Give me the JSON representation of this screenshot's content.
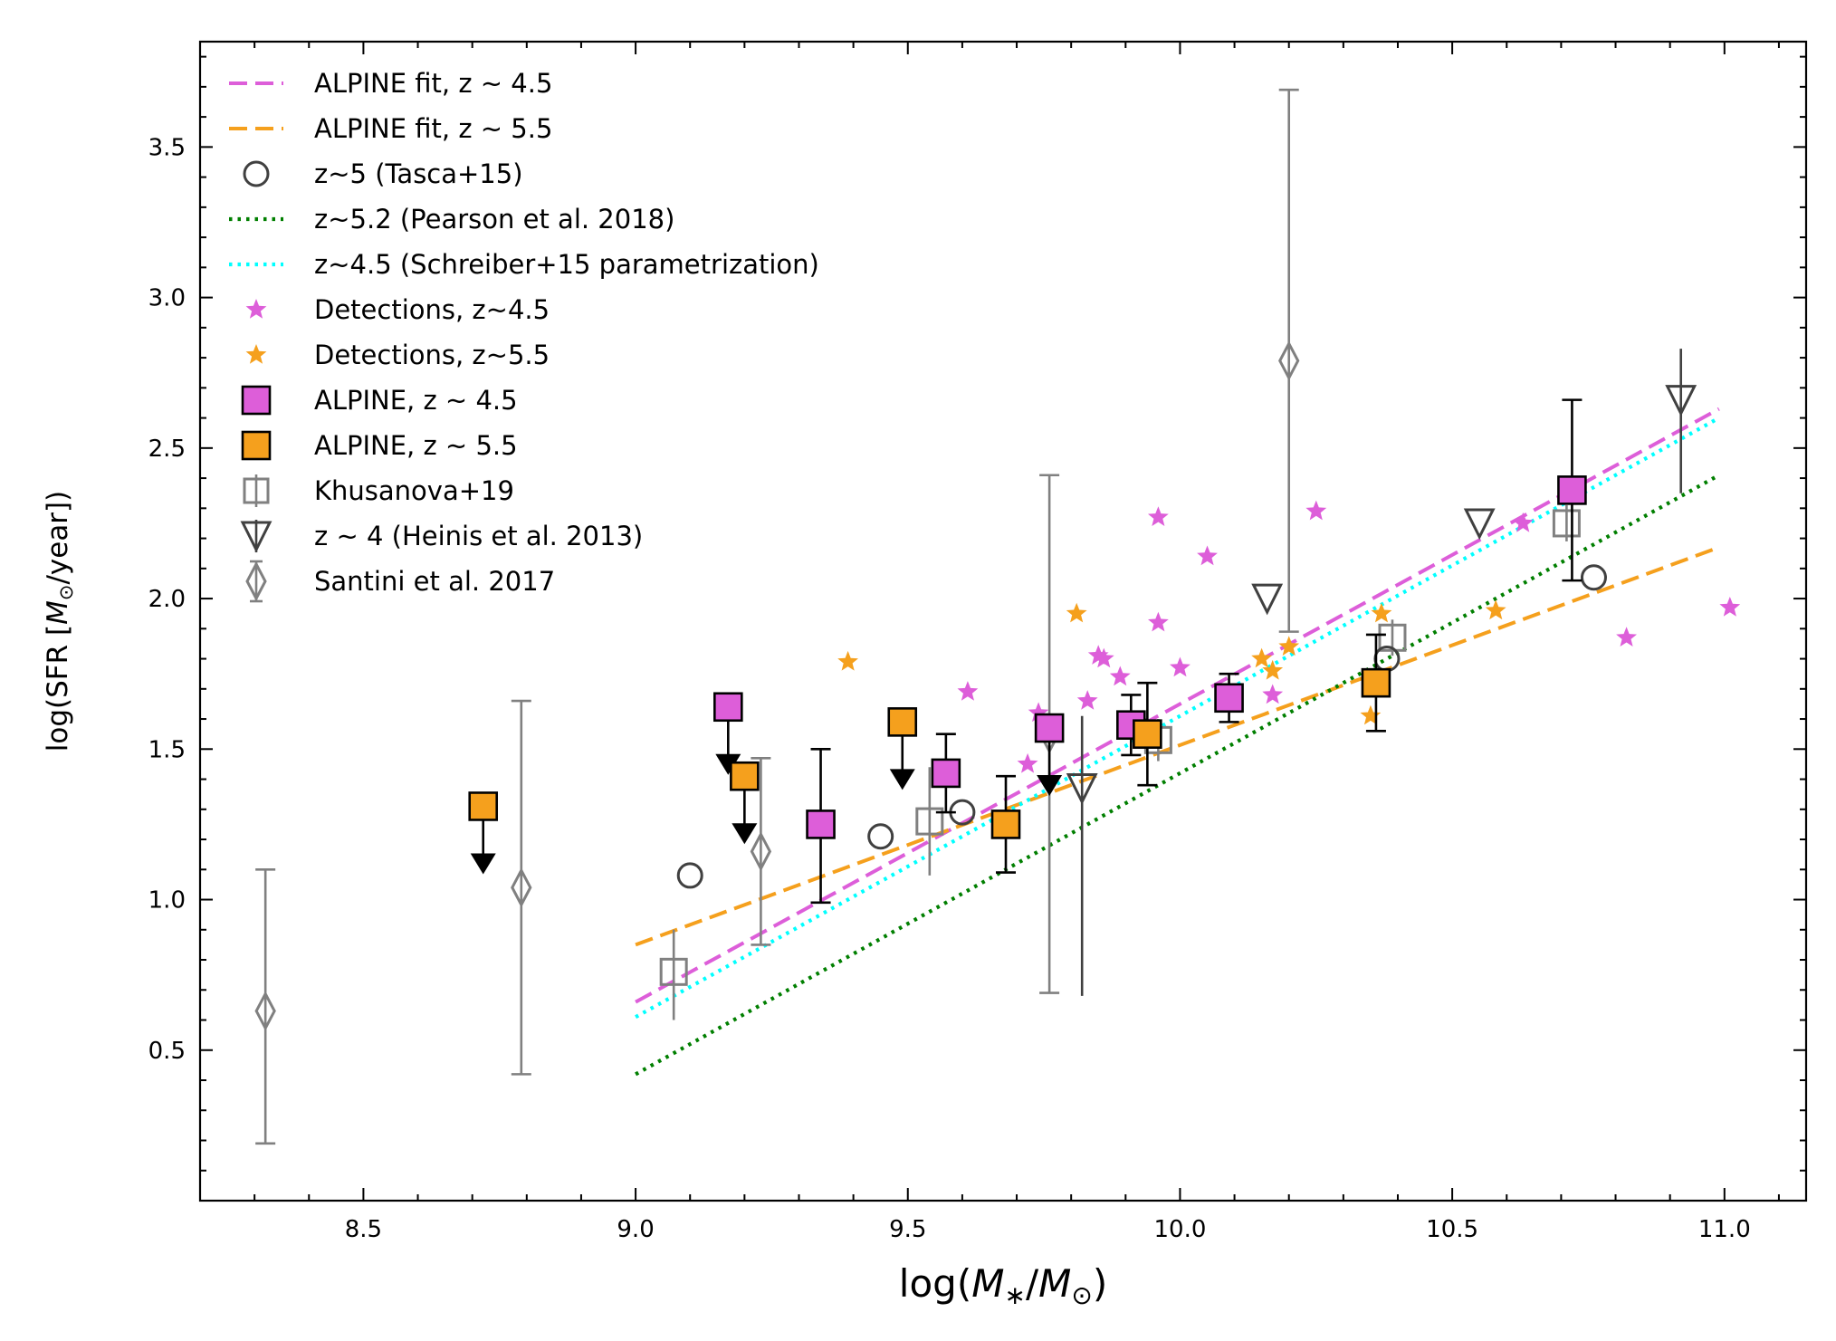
{
  "chart_data": {
    "type": "scatter",
    "title": "",
    "xlabel": "log(M*/M⊙)",
    "ylabel": "log(SFR [M⊙/year])",
    "xlabel_parts": {
      "pre": "log(",
      "m1": "M",
      "s1": "∗",
      "slash": "/",
      "m2": "M",
      "s2": "⊙",
      "post": ")"
    },
    "ylabel_parts": {
      "pre": "log(SFR [",
      "m": "M",
      "s": "⊙",
      "post": "/year])"
    },
    "xlim": [
      8.2,
      11.15
    ],
    "ylim": [
      0.0,
      3.85
    ],
    "xticks": [
      "8.5",
      "9.0",
      "9.5",
      "10.0",
      "10.5",
      "11.0"
    ],
    "yticks": [
      "0.5",
      "1.0",
      "1.5",
      "2.0",
      "2.5",
      "3.0",
      "3.5"
    ],
    "colors": {
      "magenta": "#dd5ed9",
      "orange": "#f5a01d",
      "green": "#007f00",
      "cyan": "#00ffff",
      "gray": "#808080",
      "dark": "#404040",
      "black": "#000000"
    },
    "legend": [
      {
        "label": "ALPINE fit, z ∼ 4.5",
        "marker": "dash-magenta"
      },
      {
        "label": "ALPINE fit, z ∼ 5.5",
        "marker": "dash-orange"
      },
      {
        "label": "z~5 (Tasca+15)",
        "marker": "circle-open"
      },
      {
        "label": "z~5.2 (Pearson et al. 2018)",
        "marker": "dot-green"
      },
      {
        "label": "z~4.5 (Schreiber+15 parametrization)",
        "marker": "dot-cyan"
      },
      {
        "label": "Detections, z~4.5",
        "marker": "star-magenta"
      },
      {
        "label": "Detections, z~5.5",
        "marker": "star-orange"
      },
      {
        "label": "ALPINE, z ∼ 4.5",
        "marker": "square-magenta"
      },
      {
        "label": "ALPINE, z ∼ 5.5",
        "marker": "square-orange"
      },
      {
        "label": "Khusanova+19",
        "marker": "square-open-gray"
      },
      {
        "label": "z ∼ 4 (Heinis et al. 2013)",
        "marker": "triangle-down-open"
      },
      {
        "label": "Santini et al. 2017",
        "marker": "diamond-open-gray"
      }
    ],
    "lines": [
      {
        "name": "ALPINE fit, z ∼ 4.5",
        "style": "dashed",
        "color": "magenta",
        "x": [
          9.0,
          10.99
        ],
        "y": [
          0.66,
          2.63
        ]
      },
      {
        "name": "ALPINE fit, z ∼ 5.5",
        "style": "dashed",
        "color": "orange",
        "x": [
          9.0,
          10.99
        ],
        "y": [
          0.85,
          2.17
        ]
      },
      {
        "name": "z~5.2 (Pearson et al. 2018)",
        "style": "dotted",
        "color": "green",
        "x": [
          9.0,
          10.99
        ],
        "y": [
          0.42,
          2.41
        ]
      },
      {
        "name": "z~4.5 (Schreiber+15 parametrization)",
        "style": "dotted",
        "color": "cyan",
        "x": [
          9.0,
          10.99
        ],
        "y": [
          0.61,
          2.6
        ]
      }
    ],
    "detections_z45": [
      [
        9.61,
        1.69
      ],
      [
        9.72,
        1.45
      ],
      [
        9.74,
        1.62
      ],
      [
        9.83,
        1.66
      ],
      [
        9.85,
        1.81
      ],
      [
        9.86,
        1.8
      ],
      [
        9.89,
        1.74
      ],
      [
        9.96,
        2.27
      ],
      [
        9.96,
        1.92
      ],
      [
        10.0,
        1.77
      ],
      [
        10.05,
        2.14
      ],
      [
        10.17,
        1.68
      ],
      [
        10.25,
        2.29
      ],
      [
        10.63,
        2.25
      ],
      [
        10.82,
        1.87
      ],
      [
        11.01,
        1.97
      ]
    ],
    "detections_z55": [
      [
        9.39,
        1.79
      ],
      [
        9.81,
        1.95
      ],
      [
        10.15,
        1.8
      ],
      [
        10.17,
        1.76
      ],
      [
        10.2,
        1.84
      ],
      [
        10.35,
        1.61
      ],
      [
        10.37,
        1.95
      ],
      [
        10.58,
        1.96
      ]
    ],
    "alpine_z45": [
      {
        "x": 9.17,
        "y": 1.64,
        "upper_limit": true
      },
      {
        "x": 9.34,
        "y": 1.25,
        "err_lo": 0.26,
        "err_hi": 0.25
      },
      {
        "x": 9.57,
        "y": 1.42,
        "err_lo": 0.13,
        "err_hi": 0.13
      },
      {
        "x": 9.76,
        "y": 1.57,
        "upper_limit": true
      },
      {
        "x": 9.91,
        "y": 1.58,
        "err_lo": 0.1,
        "err_hi": 0.1
      },
      {
        "x": 10.09,
        "y": 1.67,
        "err_lo": 0.08,
        "err_hi": 0.08
      },
      {
        "x": 10.72,
        "y": 2.36,
        "err_lo": 0.3,
        "err_hi": 0.3
      }
    ],
    "alpine_z55": [
      {
        "x": 8.72,
        "y": 1.31,
        "upper_limit": true
      },
      {
        "x": 9.2,
        "y": 1.41,
        "upper_limit": true
      },
      {
        "x": 9.49,
        "y": 1.59,
        "upper_limit": true
      },
      {
        "x": 9.68,
        "y": 1.25,
        "err_lo": 0.16,
        "err_hi": 0.16
      },
      {
        "x": 9.94,
        "y": 1.55,
        "err_lo": 0.17,
        "err_hi": 0.17
      },
      {
        "x": 10.36,
        "y": 1.72,
        "err_lo": 0.16,
        "err_hi": 0.16
      }
    ],
    "tasca15": [
      [
        9.1,
        1.08
      ],
      [
        9.45,
        1.21
      ],
      [
        9.6,
        1.29
      ],
      [
        9.93,
        1.56
      ],
      [
        10.38,
        1.8
      ],
      [
        10.76,
        2.07
      ]
    ],
    "khusanova19": [
      {
        "x": 9.07,
        "y": 0.76,
        "err_lo": 0.16,
        "err_hi": 0.14
      },
      {
        "x": 9.54,
        "y": 1.26,
        "err_lo": 0.18,
        "err_hi": 0.18
      },
      {
        "x": 9.96,
        "y": 1.53,
        "err_lo": 0.07,
        "err_hi": 0.07
      },
      {
        "x": 10.39,
        "y": 1.87,
        "err_lo": 0.06,
        "err_hi": 0.06
      },
      {
        "x": 10.71,
        "y": 2.25,
        "err_lo": 0.06,
        "err_hi": 0.06
      }
    ],
    "heinis13": [
      {
        "x": 9.82,
        "y": 1.37,
        "err_lo": 0.69,
        "err_hi": 0.24
      },
      {
        "x": 10.16,
        "y": 2.0
      },
      {
        "x": 10.55,
        "y": 2.25
      },
      {
        "x": 10.92,
        "y": 2.66,
        "err_lo": 0.31,
        "err_hi": 0.17
      }
    ],
    "santini17": [
      {
        "x": 8.32,
        "y": 0.63,
        "err_lo": 0.44,
        "err_hi": 0.47
      },
      {
        "x": 8.79,
        "y": 1.04,
        "err_lo": 0.62,
        "err_hi": 0.62
      },
      {
        "x": 9.23,
        "y": 1.16,
        "err_lo": 0.31,
        "err_hi": 0.31
      },
      {
        "x": 9.76,
        "y": 1.55,
        "err_lo": 0.86,
        "err_hi": 0.86
      },
      {
        "x": 10.2,
        "y": 2.79,
        "err_lo": 0.9,
        "err_hi": 0.9
      }
    ]
  }
}
